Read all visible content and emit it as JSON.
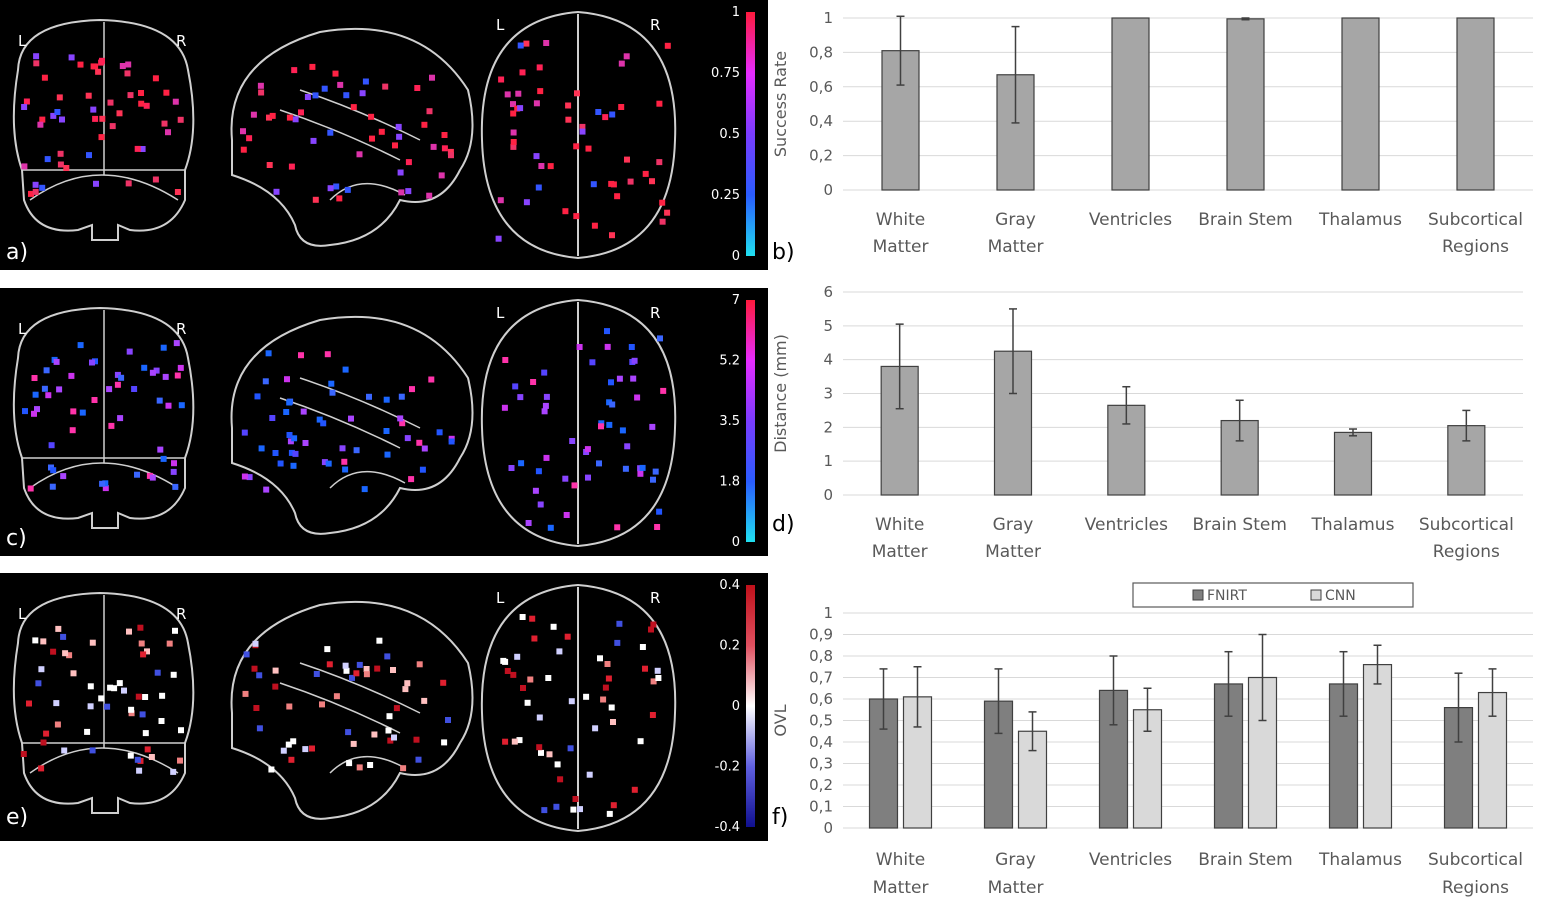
{
  "brain_panels": [
    {
      "letter": "a)",
      "left_label": "L",
      "right_label": "R",
      "left_label2": "L",
      "right_label2": "R",
      "colorbar": {
        "ticks": [
          "1",
          "0.75",
          "0.5",
          "0.25",
          "0"
        ],
        "colors": [
          "#ff1a3c",
          "#e62cff",
          "#7a3cff",
          "#2a5cff",
          "#20e0f0"
        ]
      },
      "dot_colors": [
        "#ff2244",
        "#ee3366",
        "#ff2255",
        "#dd33aa",
        "#8844ff",
        "#3355ff",
        "#ff3355",
        "#ff2244"
      ]
    },
    {
      "letter": "c)",
      "left_label": "L",
      "right_label": "R",
      "left_label2": "L",
      "right_label2": "R",
      "colorbar": {
        "ticks": [
          "7",
          "5.2",
          "3.5",
          "1.8",
          "0"
        ],
        "colors": [
          "#ff1a3c",
          "#e62cff",
          "#7a3cff",
          "#2a5cff",
          "#20e0f0"
        ]
      },
      "dot_colors": [
        "#2255ff",
        "#3a66ff",
        "#8844ff",
        "#cc33ee",
        "#ff33aa",
        "#1a66ff",
        "#5544ff",
        "#aa44ff"
      ]
    },
    {
      "letter": "e)",
      "left_label": "L",
      "right_label": "R",
      "left_label2": "L",
      "right_label2": "R",
      "colorbar": {
        "ticks": [
          "0.4",
          "0.2",
          "0",
          "-0.2",
          "-0.4"
        ],
        "colors": [
          "#c0101a",
          "#e05060",
          "#ffffff",
          "#6060e0",
          "#101090"
        ]
      },
      "dot_colors": [
        "#ffffff",
        "#e02030",
        "#f08080",
        "#d0d0ff",
        "#4050e0",
        "#c01020",
        "#ffffff",
        "#ffc0c0"
      ]
    }
  ],
  "chart_data": [
    {
      "type": "bar",
      "panel_letter": "b)",
      "ylabel": "Success Rate",
      "categories": [
        [
          "White",
          "Matter"
        ],
        [
          "Gray",
          "Matter"
        ],
        [
          "Ventricles"
        ],
        [
          "Brain Stem"
        ],
        [
          "Thalamus"
        ],
        [
          "Subcortical",
          "Regions"
        ]
      ],
      "ytick_labels": [
        "0",
        "0,2",
        "0,4",
        "0,6",
        "0,8",
        "1"
      ],
      "ylim": [
        0,
        1
      ],
      "series": [
        {
          "color": "#a6a6a6",
          "values": [
            0.81,
            0.67,
            1.0,
            0.995,
            1.0,
            1.0
          ],
          "errors": [
            0.2,
            0.28,
            0.0,
            0.005,
            0.0,
            0.0
          ]
        }
      ]
    },
    {
      "type": "bar",
      "panel_letter": "d)",
      "ylabel": "Distance (mm)",
      "categories": [
        [
          "White",
          "Matter"
        ],
        [
          "Gray",
          "Matter"
        ],
        [
          "Ventricles"
        ],
        [
          "Brain Stem"
        ],
        [
          "Thalamus"
        ],
        [
          "Subcortical",
          "Regions"
        ]
      ],
      "ytick_labels": [
        "0",
        "1",
        "2",
        "3",
        "4",
        "5",
        "6"
      ],
      "ylim": [
        0,
        6
      ],
      "series": [
        {
          "color": "#a6a6a6",
          "values": [
            3.8,
            4.25,
            2.65,
            2.2,
            1.85,
            2.05
          ],
          "errors": [
            1.25,
            1.25,
            0.55,
            0.6,
            0.1,
            0.45
          ]
        }
      ]
    },
    {
      "type": "bar",
      "panel_letter": "f)",
      "ylabel": "OVL",
      "categories": [
        [
          "White",
          "Matter"
        ],
        [
          "Gray",
          "Matter"
        ],
        [
          "Ventricles"
        ],
        [
          "Brain Stem"
        ],
        [
          "Thalamus"
        ],
        [
          "Subcortical",
          "Regions"
        ]
      ],
      "ytick_labels": [
        "0",
        "0,1",
        "0,2",
        "0,3",
        "0,4",
        "0,5",
        "0,6",
        "0,7",
        "0,8",
        "0,9",
        "1"
      ],
      "ylim": [
        0,
        1
      ],
      "legend": {
        "placement": "top"
      },
      "series": [
        {
          "name": "FNIRT",
          "color": "#7f7f7f",
          "values": [
            0.6,
            0.59,
            0.64,
            0.67,
            0.67,
            0.56
          ],
          "errors": [
            0.14,
            0.15,
            0.16,
            0.15,
            0.15,
            0.16
          ]
        },
        {
          "name": "CNN",
          "color": "#d9d9d9",
          "values": [
            0.61,
            0.45,
            0.55,
            0.7,
            0.76,
            0.63
          ],
          "errors": [
            0.14,
            0.09,
            0.1,
            0.2,
            0.09,
            0.11
          ]
        }
      ]
    }
  ]
}
